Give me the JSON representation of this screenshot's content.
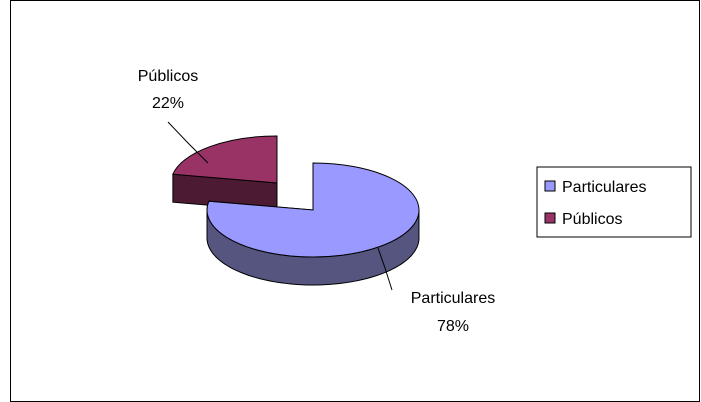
{
  "chart_data": {
    "type": "pie",
    "style": "3d-exploded",
    "slices": [
      {
        "label": "Particulares",
        "value": 78,
        "value_label": "78%",
        "color": "#9999ff",
        "side_color": "#55557f"
      },
      {
        "label": "Públicos",
        "value": 22,
        "value_label": "22%",
        "color": "#993366",
        "side_color": "#4d1a33"
      }
    ],
    "legend": {
      "position": "right",
      "entries": [
        "Particulares",
        "Públicos"
      ]
    }
  }
}
